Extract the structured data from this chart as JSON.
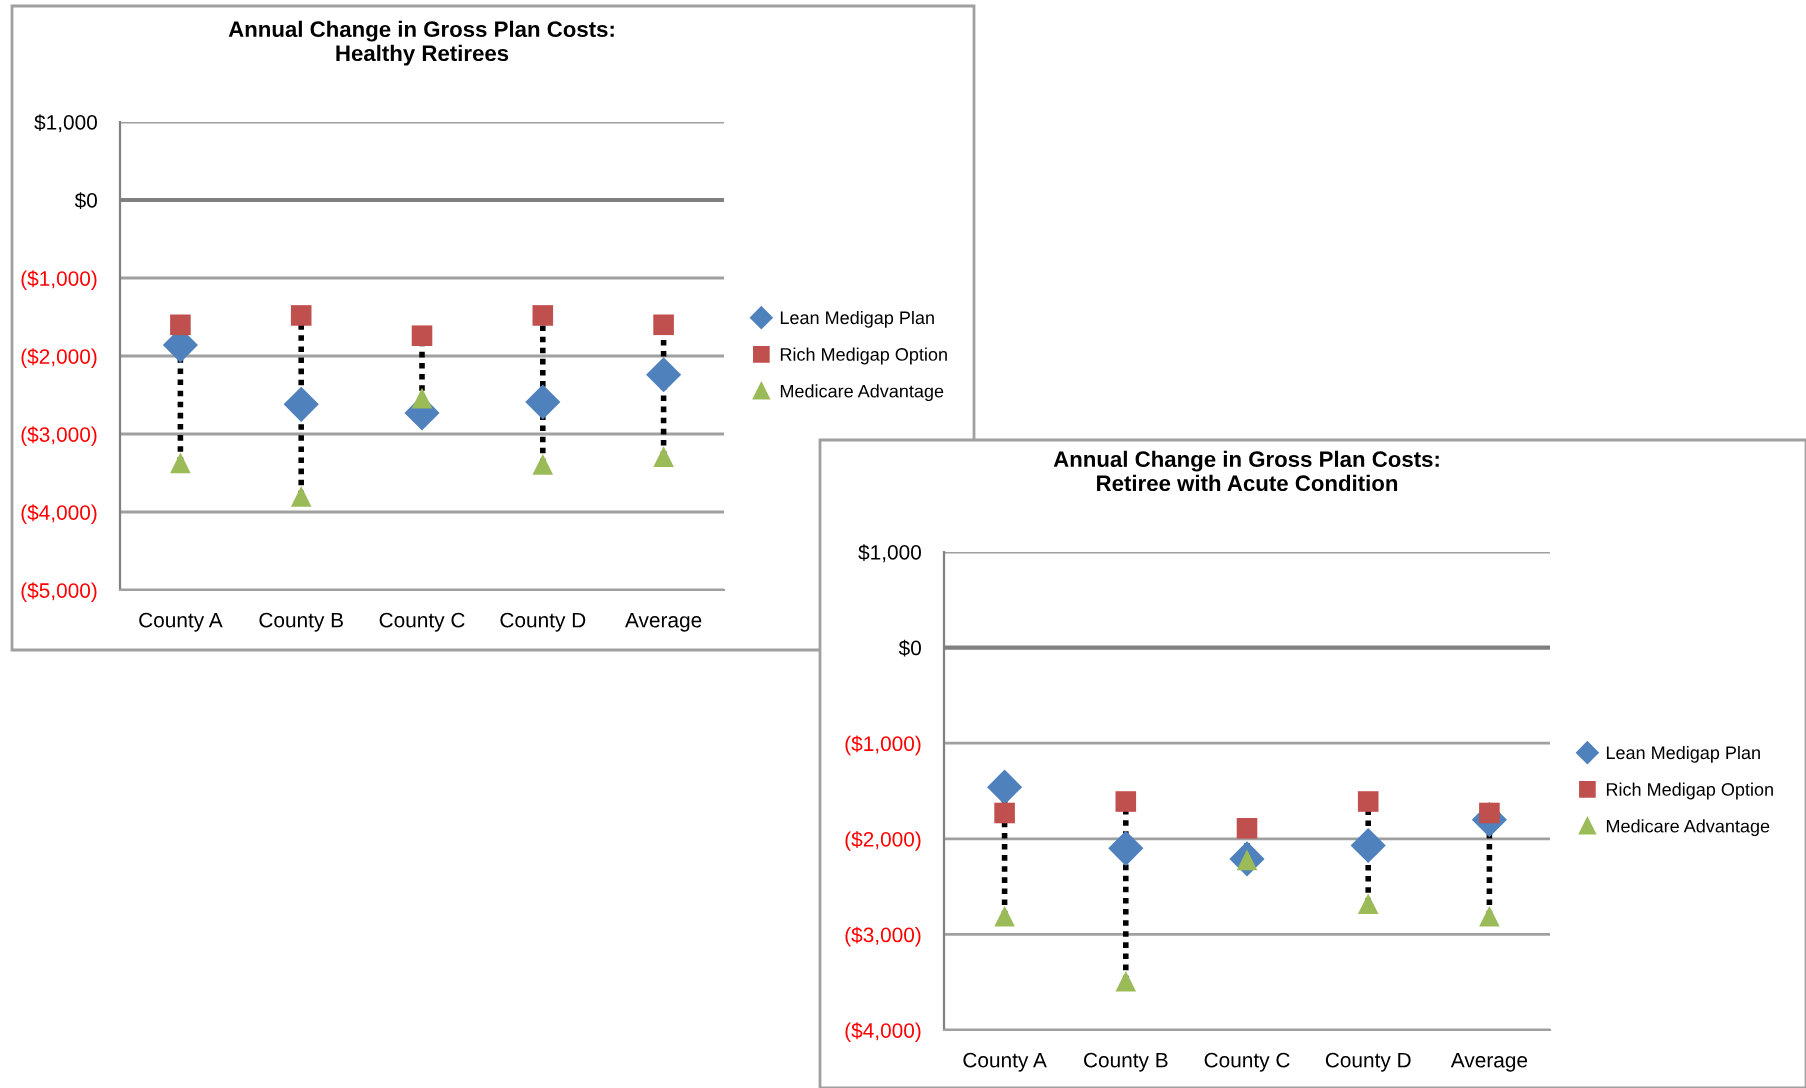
{
  "chart_data": [
    {
      "type": "scatter",
      "title": "Annual Change in Gross Plan Costs:\nHealthy Retirees",
      "categories": [
        "County A",
        "County B",
        "County C",
        "County D",
        "Average"
      ],
      "series": [
        {
          "name": "Lean Medigap Plan",
          "color": "#4f81bd",
          "marker": "diamond",
          "values": [
            -1860,
            -2620,
            -2730,
            -2590,
            -2240
          ]
        },
        {
          "name": "Rich Medigap Option",
          "color": "#c0504d",
          "marker": "square",
          "values": [
            -1600,
            -1480,
            -1740,
            -1480,
            -1600
          ]
        },
        {
          "name": "Medicare Advantage",
          "color": "#9bbb59",
          "marker": "triangle",
          "values": [
            -3370,
            -3800,
            -2540,
            -3390,
            -3290
          ]
        }
      ],
      "ylim": [
        -5000,
        1000
      ],
      "yticks": [
        {
          "value": -5000,
          "label": "($5,000)"
        },
        {
          "value": -4000,
          "label": "($4,000)"
        },
        {
          "value": -3000,
          "label": "($3,000)"
        },
        {
          "value": -2000,
          "label": "($2,000)"
        },
        {
          "value": -1000,
          "label": "($1,000)"
        },
        {
          "value": 0,
          "label": "$0"
        },
        {
          "value": 1000,
          "label": "$1,000"
        }
      ],
      "grid": "y",
      "legend": "right"
    },
    {
      "type": "scatter",
      "title": "Annual Change in Gross Plan Costs:\nRetiree with Acute Condition",
      "categories": [
        "County A",
        "County B",
        "County C",
        "County D",
        "Average"
      ],
      "series": [
        {
          "name": "Lean Medigap Plan",
          "color": "#4f81bd",
          "marker": "diamond",
          "values": [
            -1460,
            -2100,
            -2210,
            -2070,
            -1800
          ]
        },
        {
          "name": "Rich Medigap Option",
          "color": "#c0504d",
          "marker": "square",
          "values": [
            -1730,
            -1610,
            -1890,
            -1610,
            -1730
          ]
        },
        {
          "name": "Medicare Advantage",
          "color": "#9bbb59",
          "marker": "triangle",
          "values": [
            -2810,
            -3490,
            -2220,
            -2680,
            -2810
          ]
        }
      ],
      "ylim": [
        -4000,
        1000
      ],
      "yticks": [
        {
          "value": -4000,
          "label": "($4,000)"
        },
        {
          "value": -3000,
          "label": "($3,000)"
        },
        {
          "value": -2000,
          "label": "($2,000)"
        },
        {
          "value": -1000,
          "label": "($1,000)"
        },
        {
          "value": 0,
          "label": "$0"
        },
        {
          "value": 1000,
          "label": "$1,000"
        }
      ],
      "grid": "y",
      "legend": "right"
    }
  ]
}
